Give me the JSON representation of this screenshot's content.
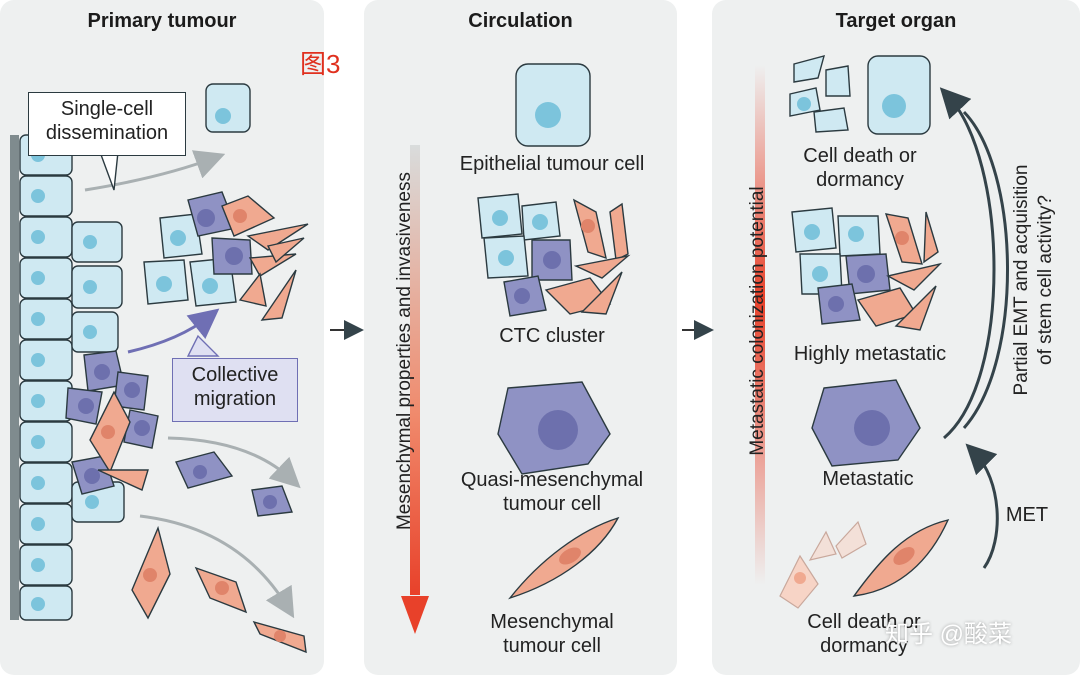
{
  "panels": {
    "primary": {
      "title": "Primary tumour",
      "single_cell": [
        "Single-cell",
        "dissemination"
      ],
      "collective": [
        "Collective",
        "migration"
      ]
    },
    "circulation": {
      "title": "Circulation",
      "axis_label": "Mesenchymal properties and invasiveness",
      "epithelial": "Epithelial tumour cell",
      "ctc": "CTC cluster",
      "quasi": [
        "Quasi-mesenchymal",
        "tumour cell"
      ],
      "mesenchymal": [
        "Mesenchymal",
        "tumour cell"
      ]
    },
    "target": {
      "title": "Target organ",
      "axis_label": "Metastatic colonization potential",
      "death_top": [
        "Cell death or",
        "dormancy"
      ],
      "highly": "Highly metastatic",
      "metastatic": "Metastatic",
      "death_bottom": [
        "Cell death or",
        "dormancy"
      ],
      "met": "MET",
      "partial": [
        "Partial EMT and acquisition",
        "of stem cell activity?"
      ]
    }
  },
  "figure_label": "图3",
  "watermark": "知乎 @酸菜",
  "colors": {
    "epithelial_fill": "#cfe9f2",
    "epithelial_nucleus": "#7cc4dc",
    "quasi_fill": "#8f92c4",
    "mesenchymal_fill": "#f0a990",
    "arrow_gray": "#a9b0b2",
    "arrow_blue": "#6f6fb4",
    "gradient_red": "#e8412a"
  }
}
